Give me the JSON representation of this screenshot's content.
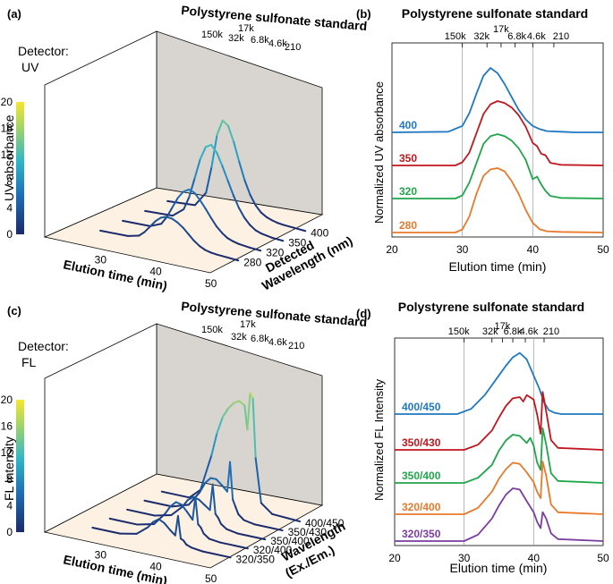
{
  "colors": {
    "blue": "#1f78c1",
    "red": "#c0161d",
    "green": "#1fa54a",
    "orange": "#e8792b",
    "purple": "#7a3da0",
    "wall": "#d8d4cf",
    "floor": "#fcf1e3"
  },
  "chart_data": [
    {
      "panel": "a",
      "panel_label": "(a)",
      "type": "line",
      "title": "Polystyrene sulfonate standard",
      "detector_label": "Detector:",
      "detector_value": "UV",
      "standards": [
        "150k",
        "32k",
        "17k",
        "6.8k",
        "4.6k",
        "210"
      ],
      "xlabel": "Elution time (min)",
      "xticks": [
        "30",
        "40",
        "50"
      ],
      "xlim": [
        20,
        50
      ],
      "depth_label_1": "Detected",
      "depth_label_2": "Wavelength (nm)",
      "depth_ticks": [
        "280",
        "320",
        "350",
        "400"
      ],
      "colorbar_label": "UV absorbance",
      "colorbar_ticks": [
        "0",
        "4",
        "8",
        "12",
        "16",
        "20"
      ],
      "zlim": [
        0,
        20
      ],
      "series": [
        {
          "name": "280",
          "x": [
            25,
            30,
            32,
            33,
            34,
            35,
            36,
            37,
            38,
            39,
            40,
            41,
            42,
            43,
            44,
            45,
            46,
            48,
            50
          ],
          "values": [
            0,
            0.1,
            0.5,
            1.2,
            2.2,
            3.2,
            3.9,
            4.2,
            4.1,
            3.7,
            3.1,
            2.3,
            1.5,
            0.9,
            0.5,
            0.3,
            0.2,
            0.1,
            0
          ]
        },
        {
          "name": "320",
          "x": [
            25,
            30,
            32,
            33,
            34,
            35,
            36,
            37,
            38,
            39,
            40,
            41,
            42,
            43,
            44,
            45,
            46,
            48,
            50
          ],
          "values": [
            0,
            0.1,
            0.8,
            2,
            3.6,
            5.2,
            6.3,
            6.8,
            6.5,
            5.6,
            4.5,
            3.3,
            2.2,
            1.4,
            0.8,
            0.5,
            0.3,
            0.1,
            0
          ]
        },
        {
          "name": "350",
          "x": [
            25,
            30,
            32,
            33,
            34,
            35,
            36,
            37,
            38,
            39,
            40,
            41,
            42,
            43,
            44,
            45,
            46,
            48,
            50
          ],
          "values": [
            0,
            0.2,
            1.5,
            3.5,
            6.5,
            9.5,
            11.5,
            12,
            11,
            9.2,
            7.2,
            5.2,
            3.5,
            2.2,
            1.3,
            0.7,
            0.4,
            0.1,
            0
          ]
        },
        {
          "name": "400",
          "x": [
            25,
            30,
            32,
            33,
            34,
            35,
            36,
            37,
            38,
            39,
            40,
            41,
            42,
            43,
            44,
            45,
            46,
            48,
            50
          ],
          "values": [
            0,
            0.3,
            2.5,
            6.5,
            11.5,
            13.8,
            13.2,
            11,
            8.2,
            5.6,
            3.6,
            2.2,
            1.3,
            0.8,
            0.5,
            0.3,
            0.2,
            0.1,
            0
          ]
        }
      ]
    },
    {
      "panel": "b",
      "panel_label": "(b)",
      "type": "line",
      "title": "Polystyrene sulfonate standard",
      "standards": [
        "150k",
        "32k",
        "17k",
        "6.8k",
        "4.6k",
        "210"
      ],
      "xlabel": "Elution time (min)",
      "ylabel": "Normalized UV absorbance",
      "xticks": [
        "20",
        "30",
        "40",
        "50"
      ],
      "xlim": [
        20,
        50
      ],
      "vlines": [
        30,
        40
      ],
      "series": [
        {
          "name": "400",
          "color": "blue",
          "x": [
            20,
            28,
            30,
            31,
            32,
            33,
            34,
            35,
            36,
            37,
            38,
            39,
            40,
            41,
            42,
            44,
            46,
            50
          ],
          "values": [
            0,
            0.01,
            0.1,
            0.3,
            0.6,
            0.88,
            1.0,
            0.92,
            0.75,
            0.55,
            0.35,
            0.2,
            0.1,
            0.05,
            0.02,
            0.01,
            0,
            0
          ]
        },
        {
          "name": "350",
          "color": "red",
          "x": [
            20,
            29,
            30,
            31,
            32,
            33,
            34,
            35,
            36,
            37,
            38,
            39,
            40,
            40.6,
            41.2,
            41.8,
            42.5,
            44,
            50
          ],
          "values": [
            0,
            0,
            0.05,
            0.2,
            0.5,
            0.8,
            0.95,
            1.0,
            0.97,
            0.9,
            0.78,
            0.6,
            0.35,
            0.3,
            0.18,
            0.16,
            0.04,
            0.01,
            0
          ]
        },
        {
          "name": "320",
          "color": "green",
          "x": [
            20,
            29,
            30,
            31,
            32,
            33,
            34,
            35,
            36,
            37,
            38,
            39,
            40,
            40.6,
            41.2,
            41.8,
            42.5,
            44,
            50
          ],
          "values": [
            0,
            0,
            0.05,
            0.25,
            0.55,
            0.85,
            0.97,
            1.0,
            0.97,
            0.9,
            0.78,
            0.6,
            0.3,
            0.34,
            0.22,
            0.12,
            0.04,
            0.01,
            0
          ]
        },
        {
          "name": "280",
          "color": "orange",
          "x": [
            20,
            29,
            30,
            31,
            32,
            33,
            34,
            35,
            36,
            37,
            38,
            39,
            40,
            41,
            42,
            44,
            50
          ],
          "values": [
            0,
            0,
            0.05,
            0.25,
            0.6,
            0.88,
            0.98,
            1.0,
            0.95,
            0.8,
            0.6,
            0.35,
            0.15,
            0.05,
            0.02,
            0.01,
            0
          ]
        }
      ]
    },
    {
      "panel": "c",
      "panel_label": "(c)",
      "type": "line",
      "title": "Polystyrene sulfonate standard",
      "detector_label": "Detector:",
      "detector_value": "FL",
      "standards": [
        "150k",
        "17k",
        "32k",
        "6.8k",
        "4.6k",
        "210"
      ],
      "xlabel": "Elution time (min)",
      "xticks": [
        "30",
        "40",
        "50"
      ],
      "xlim": [
        20,
        50
      ],
      "depth_label_1": "Wavelength",
      "depth_label_2": "(Ex./Em.)",
      "depth_ticks": [
        "320/350",
        "320/400",
        "350/400",
        "350/430",
        "400/450"
      ],
      "colorbar_label": "FL Intensity",
      "colorbar_ticks": [
        "0",
        "4",
        "8",
        "12",
        "16",
        "20"
      ],
      "zlim": [
        0,
        20
      ],
      "series": [
        {
          "name": "320/350",
          "x": [
            25,
            30,
            33,
            35,
            36,
            37,
            38,
            39,
            40,
            40.5,
            41,
            41.5,
            42,
            43,
            45,
            50
          ],
          "values": [
            0,
            0,
            0.5,
            1.8,
            2.8,
            3.4,
            3.0,
            2.2,
            1.5,
            4.5,
            1.2,
            1.0,
            0.5,
            0.2,
            0,
            0
          ]
        },
        {
          "name": "320/400",
          "x": [
            25,
            30,
            33,
            35,
            36,
            37,
            38,
            39,
            40,
            40.5,
            41,
            41.5,
            42,
            43,
            45,
            50
          ],
          "values": [
            0,
            0,
            0.6,
            2.5,
            3.8,
            4.6,
            4.4,
            3.5,
            2.5,
            6.0,
            2.0,
            1.6,
            0.8,
            0.2,
            0,
            0
          ]
        },
        {
          "name": "350/400",
          "x": [
            25,
            30,
            33,
            35,
            36,
            37,
            38,
            39,
            40,
            40.5,
            41,
            41.5,
            42,
            43,
            45,
            50
          ],
          "values": [
            0,
            0,
            0.6,
            2.2,
            3.4,
            4.0,
            3.8,
            3.2,
            2.6,
            6.5,
            2.2,
            1.7,
            0.9,
            0.3,
            0,
            0
          ]
        },
        {
          "name": "350/430",
          "x": [
            25,
            30,
            33,
            35,
            36,
            37,
            38,
            39,
            40,
            40.5,
            41,
            41.5,
            42,
            43,
            45,
            50
          ],
          "values": [
            0,
            0,
            0.8,
            3.0,
            4.6,
            5.5,
            5.5,
            4.8,
            4.0,
            8.5,
            3.0,
            2.0,
            1.0,
            0.3,
            0,
            0
          ]
        },
        {
          "name": "400/450",
          "x": [
            25,
            30,
            32,
            34,
            35,
            36,
            37,
            38,
            39,
            40,
            40.5,
            41,
            41.5,
            42,
            43,
            45,
            50
          ],
          "values": [
            0,
            0,
            1.5,
            7.0,
            10.5,
            13.0,
            14.5,
            15.5,
            16.0,
            15.5,
            12.0,
            17.5,
            16.8,
            8.0,
            1.5,
            0.2,
            0
          ]
        }
      ]
    },
    {
      "panel": "d",
      "panel_label": "(d)",
      "type": "line",
      "title": "Polystyrene sulfonate standard",
      "standards": [
        "150k",
        "32k",
        "17k",
        "6.8k",
        "4.6k",
        "210"
      ],
      "xlabel": "Elution time (min)",
      "ylabel": "Normalized FL Intensity",
      "xticks": [
        "20",
        "30",
        "40",
        "50"
      ],
      "xlim": [
        20,
        50
      ],
      "vlines": [
        30,
        40
      ],
      "series": [
        {
          "name": "400/450",
          "color": "blue",
          "x": [
            20,
            29,
            31,
            33,
            35,
            36,
            37,
            38,
            39,
            40,
            40.8,
            41.5,
            42.2,
            43,
            44,
            50
          ],
          "values": [
            0,
            0,
            0.08,
            0.3,
            0.6,
            0.75,
            0.88,
            0.95,
            0.85,
            0.6,
            0.4,
            0.18,
            0.06,
            0.02,
            0,
            0
          ]
        },
        {
          "name": "350/430",
          "color": "red",
          "x": [
            20,
            30,
            32,
            34,
            35,
            36,
            37,
            38,
            38.5,
            39,
            40,
            40.5,
            41,
            41.3,
            41.8,
            42.5,
            43.5,
            50
          ],
          "values": [
            0,
            0,
            0.08,
            0.3,
            0.5,
            0.68,
            0.8,
            0.82,
            0.75,
            0.85,
            0.78,
            0.55,
            0.25,
            0.9,
            0.6,
            0.15,
            0.03,
            0
          ]
        },
        {
          "name": "350/400",
          "color": "green",
          "x": [
            20,
            30,
            32,
            34,
            35,
            36,
            37,
            38,
            39,
            39.5,
            40,
            40.5,
            41,
            41.3,
            41.8,
            42.5,
            43.5,
            50
          ],
          "values": [
            0,
            0,
            0.08,
            0.28,
            0.5,
            0.66,
            0.75,
            0.73,
            0.62,
            0.7,
            0.58,
            0.32,
            0.2,
            0.85,
            0.6,
            0.15,
            0.03,
            0
          ]
        },
        {
          "name": "320/400",
          "color": "orange",
          "x": [
            20,
            30,
            32,
            34,
            35,
            36,
            37,
            38,
            39,
            40,
            40.5,
            41,
            41.3,
            41.8,
            42.5,
            43.5,
            50
          ],
          "values": [
            0,
            0,
            0.1,
            0.35,
            0.55,
            0.7,
            0.8,
            0.78,
            0.65,
            0.5,
            0.35,
            0.25,
            0.82,
            0.6,
            0.15,
            0.03,
            0
          ]
        },
        {
          "name": "320/350",
          "color": "purple",
          "x": [
            20,
            30,
            32,
            34,
            35,
            36,
            37,
            38,
            39,
            40,
            40.5,
            41,
            41.3,
            41.8,
            42.5,
            43.5,
            50
          ],
          "values": [
            0,
            0,
            0.1,
            0.35,
            0.55,
            0.72,
            0.82,
            0.8,
            0.62,
            0.45,
            0.3,
            0.2,
            0.45,
            0.35,
            0.12,
            0.03,
            0
          ]
        }
      ]
    }
  ]
}
